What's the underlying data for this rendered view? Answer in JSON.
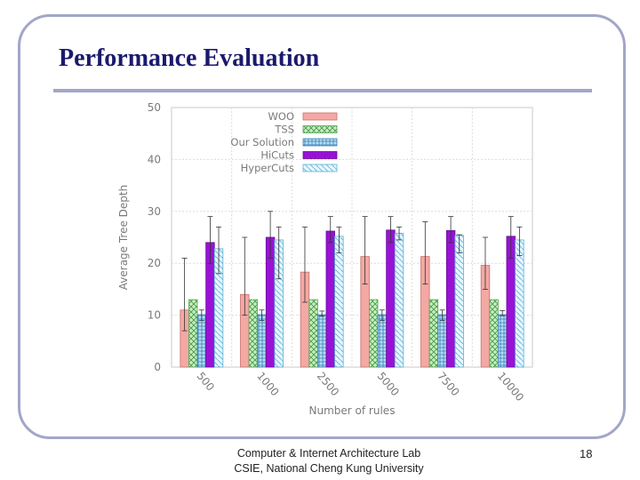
{
  "slide": {
    "title": "Performance Evaluation",
    "footer_line1": "Computer & Internet Architecture Lab",
    "footer_line2": "CSIE, National Cheng Kung University",
    "page_number": "18"
  },
  "colors": {
    "WOO": "#f4a8a4",
    "TSS": "#a9dba3",
    "Our Solution": "#9fd4ee",
    "HiCuts": "#9a11d6",
    "HyperCuts": "#bfe6f4",
    "grid": "#dcdcdc",
    "axis_text": "#7a7a7a"
  },
  "chart_data": {
    "type": "bar",
    "title": "",
    "xlabel": "Number of rules",
    "ylabel": "Average Tree Depth",
    "ylim": [
      0,
      50
    ],
    "yticks": [
      "0",
      "10",
      "20",
      "30",
      "40",
      "50"
    ],
    "categories": [
      "500",
      "1000",
      "2500",
      "5000",
      "7500",
      "10000"
    ],
    "grid": true,
    "legend_position": "top-right",
    "series": [
      {
        "name": "WOO",
        "values": [
          11,
          14,
          18.3,
          21.3,
          21.3,
          19.6
        ],
        "err_low": [
          7,
          10,
          12.5,
          16,
          16,
          15
        ],
        "err_high": [
          21,
          25,
          27,
          29,
          28,
          25
        ]
      },
      {
        "name": "TSS",
        "values": [
          13,
          13,
          13,
          13,
          13,
          13
        ],
        "err_low": [
          13,
          13,
          13,
          13,
          13,
          13
        ],
        "err_high": [
          13,
          13,
          13,
          13,
          13,
          13
        ]
      },
      {
        "name": "Our Solution",
        "values": [
          10.1,
          10.1,
          10.1,
          10.1,
          10.1,
          10.1
        ],
        "err_low": [
          9,
          9,
          9.8,
          9,
          9,
          9.9
        ],
        "err_high": [
          11,
          11,
          10.8,
          11,
          11,
          10.9
        ]
      },
      {
        "name": "HiCuts",
        "values": [
          24,
          25,
          26.2,
          26.4,
          26.3,
          25.2
        ],
        "err_low": [
          20,
          21,
          24,
          24,
          24,
          21
        ],
        "err_high": [
          29,
          30,
          29,
          29,
          29,
          29
        ]
      },
      {
        "name": "HyperCuts",
        "values": [
          22.8,
          24.5,
          25.2,
          25.8,
          25.4,
          24.5
        ],
        "err_low": [
          18,
          17,
          22,
          24.5,
          22,
          21.5
        ],
        "err_high": [
          27,
          27,
          27,
          27,
          25.5,
          27
        ]
      }
    ]
  }
}
